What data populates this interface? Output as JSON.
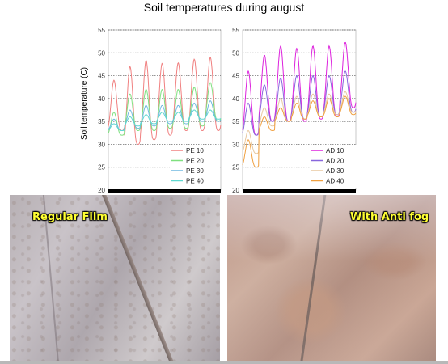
{
  "title": "Soil temperatures during august",
  "photos": {
    "left_label": "Regular Film",
    "right_label": "With Anti fog"
  },
  "chart_data": [
    {
      "type": "line",
      "ylabel": "Soil temperature (C)",
      "ylim": [
        20,
        55
      ],
      "yticks": [
        "20",
        "25",
        "30",
        "35",
        "40",
        "45",
        "50",
        "55"
      ],
      "grid": "horizontal dotted",
      "legend_position": "bottom-right",
      "series": [
        {
          "name": "PE 10",
          "color": "#f08080",
          "base": 39,
          "amp": 9.5,
          "peaks": [
            44,
            47,
            48.3,
            47.7,
            47.8,
            48.6,
            49
          ],
          "troughs": [
            33,
            30,
            31,
            32,
            33,
            33,
            33
          ]
        },
        {
          "name": "PE 20",
          "color": "#7fe07f",
          "base": 37.5,
          "amp": 4,
          "peaks": [
            37,
            41,
            42,
            42,
            42,
            42.5,
            43.5
          ],
          "troughs": [
            32,
            33,
            33,
            33.5,
            33.5,
            34,
            35
          ]
        },
        {
          "name": "PE 30",
          "color": "#6fb8e0",
          "base": 36,
          "amp": 2.5,
          "peaks": [
            35.5,
            37.5,
            38.5,
            38.5,
            38.5,
            39,
            39.5
          ],
          "troughs": [
            33,
            33.5,
            34,
            34.5,
            34.5,
            35,
            35
          ]
        },
        {
          "name": "PE 40",
          "color": "#5fd8d0",
          "base": 35.5,
          "amp": 1.5,
          "peaks": [
            34.5,
            36,
            36.5,
            37,
            37,
            37.5,
            37.5
          ],
          "troughs": [
            33,
            34,
            34.5,
            35,
            35,
            35.5,
            35.5
          ]
        }
      ]
    },
    {
      "type": "line",
      "ylim": [
        20,
        55
      ],
      "yticks": [
        "20",
        "25",
        "30",
        "35",
        "40",
        "45",
        "50",
        "55"
      ],
      "grid": "horizontal dotted",
      "legend_position": "bottom-right",
      "series": [
        {
          "name": "AD 10",
          "color": "#dd22dd",
          "base": 40,
          "amp": 10,
          "peaks": [
            46,
            49.5,
            51.5,
            51,
            51.5,
            51.5,
            52.3
          ],
          "troughs": [
            32,
            35,
            35,
            35,
            35.5,
            36,
            38
          ]
        },
        {
          "name": "AD 20",
          "color": "#8866dd",
          "base": 38.5,
          "amp": 5,
          "peaks": [
            39,
            43,
            44.5,
            45,
            45,
            45,
            46
          ],
          "troughs": [
            32,
            35,
            35,
            35.5,
            36,
            36.5,
            37
          ]
        },
        {
          "name": "AD 30",
          "color": "#e8c8a0",
          "base": 37,
          "amp": 3,
          "peaks": [
            33,
            38,
            40,
            40.5,
            41,
            41,
            41.5
          ],
          "troughs": [
            28,
            34,
            35,
            35.5,
            36,
            36.5,
            37
          ]
        },
        {
          "name": "AD 40",
          "color": "#f0a040",
          "base": 36,
          "amp": 2,
          "peaks": [
            31,
            36,
            38,
            39,
            39.5,
            40,
            40.5
          ],
          "troughs": [
            25,
            33,
            35,
            35.5,
            36,
            36,
            36.5
          ]
        }
      ]
    }
  ]
}
